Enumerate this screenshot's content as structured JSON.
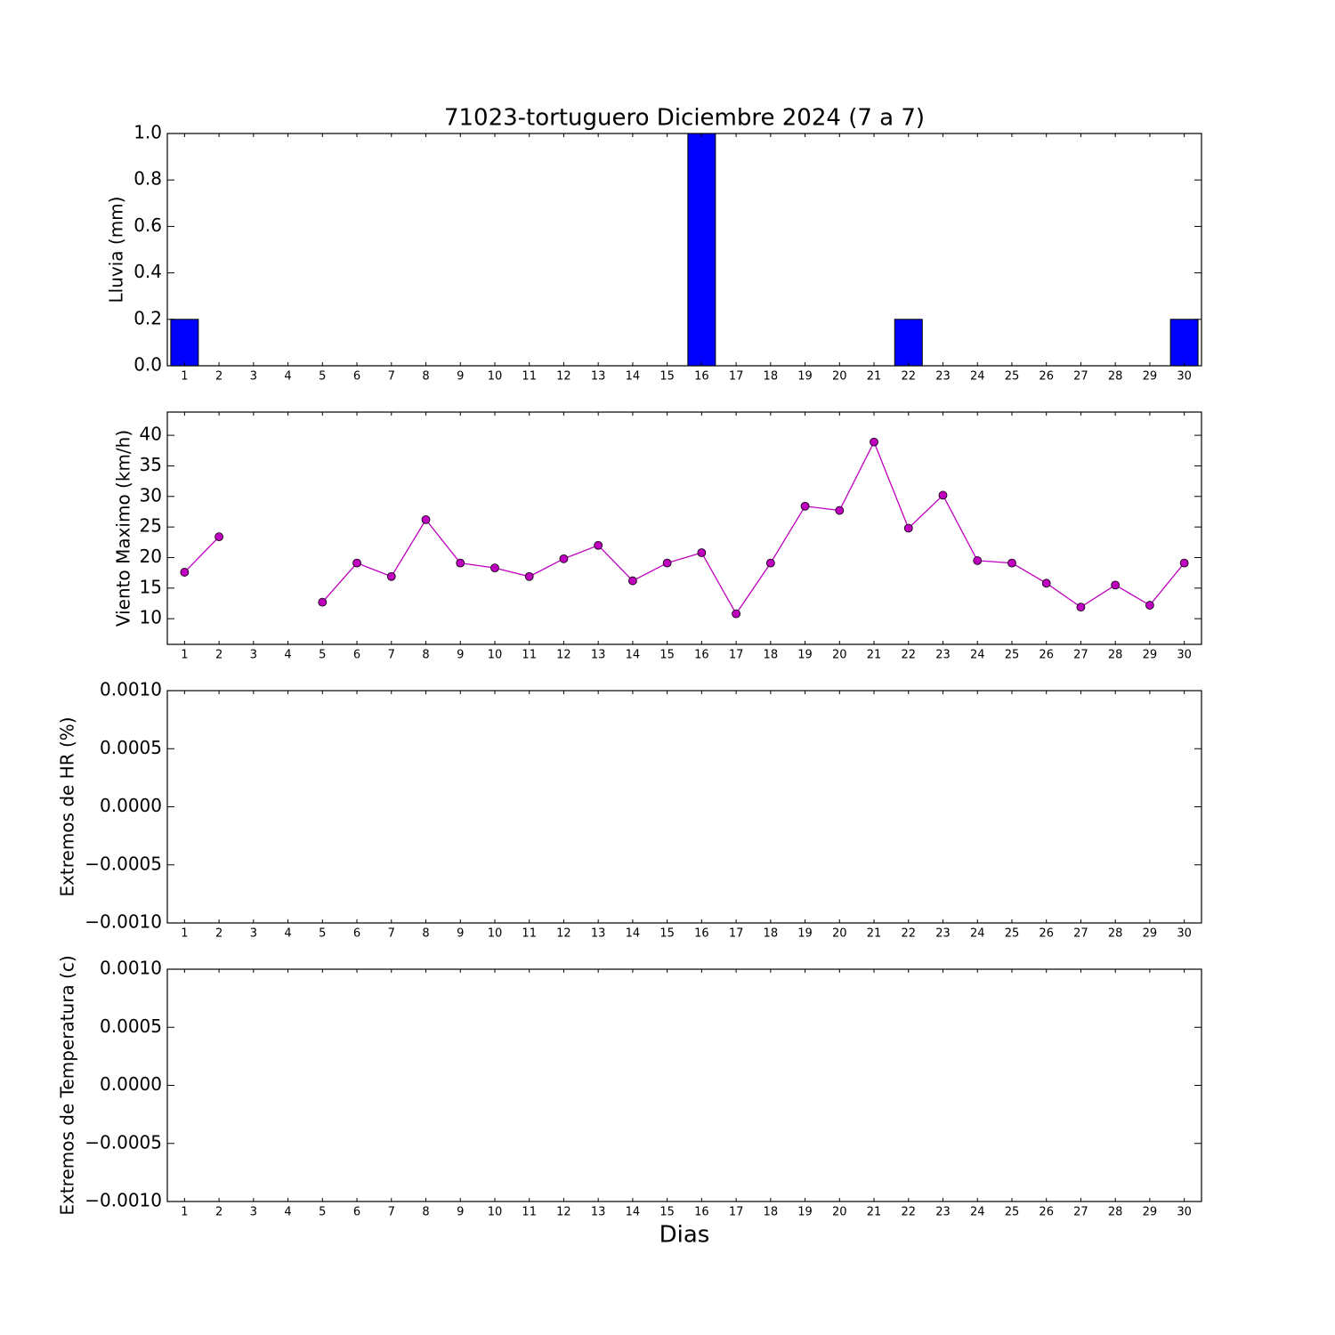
{
  "chart_data": [
    {
      "type": "bar",
      "title": "71023-tortuguero Diciembre 2024  (7 a 7)",
      "y_label": "Lluvia (mm)",
      "x": [
        1,
        2,
        3,
        4,
        5,
        6,
        7,
        8,
        9,
        10,
        11,
        12,
        13,
        14,
        15,
        16,
        17,
        18,
        19,
        20,
        21,
        22,
        23,
        24,
        25,
        26,
        27,
        28,
        29,
        30
      ],
      "values": [
        0.2,
        0,
        0,
        0,
        0,
        0,
        0,
        0,
        0,
        0,
        0,
        0,
        0,
        0,
        0,
        1.0,
        0,
        0,
        0,
        0,
        0,
        0.2,
        0,
        0,
        0,
        0,
        0,
        0,
        0,
        0.2
      ],
      "color": "#0000ff",
      "xlim": [
        0.5,
        30.5
      ],
      "xticks": [
        1,
        2,
        3,
        4,
        5,
        6,
        7,
        8,
        9,
        10,
        11,
        12,
        13,
        14,
        15,
        16,
        17,
        18,
        19,
        20,
        21,
        22,
        23,
        24,
        25,
        26,
        27,
        28,
        29,
        30
      ],
      "ylim": [
        0,
        1
      ],
      "yticks": [
        {
          "value": 0,
          "label": "0.0"
        },
        0.2,
        0.4,
        0.6,
        0.8,
        {
          "value": 1,
          "label": "1.0"
        }
      ]
    },
    {
      "type": "line",
      "y_label": "Viento Maximo (km/h)",
      "x": [
        1,
        2,
        3,
        4,
        5,
        6,
        7,
        8,
        9,
        10,
        11,
        12,
        13,
        14,
        15,
        16,
        17,
        18,
        19,
        20,
        21,
        22,
        23,
        24,
        25,
        26,
        27,
        28,
        29,
        30
      ],
      "series": [
        {
          "color": "#bf00bf",
          "values": [
            17.6,
            23.4,
            null,
            null,
            12.7,
            19.1,
            16.9,
            26.2,
            19.1,
            18.3,
            16.9,
            19.8,
            22.0,
            16.2,
            19.1,
            20.8,
            10.8,
            19.1,
            28.4,
            27.7,
            38.9,
            24.8,
            30.2,
            19.5,
            19.1,
            15.8,
            11.9,
            15.5,
            12.2,
            19.1
          ]
        }
      ],
      "xlim": [
        0.5,
        30.5
      ],
      "xticks": [
        1,
        2,
        3,
        4,
        5,
        6,
        7,
        8,
        9,
        10,
        11,
        12,
        13,
        14,
        15,
        16,
        17,
        18,
        19,
        20,
        21,
        22,
        23,
        24,
        25,
        26,
        27,
        28,
        29,
        30
      ],
      "ylim": [
        5.8,
        43.8
      ],
      "yticks": [
        10,
        15,
        20,
        25,
        30,
        35,
        40
      ]
    },
    {
      "type": "line",
      "y_label": "Extremos de HR (%)",
      "xlim": [
        0.5,
        30.5
      ],
      "xticks": [
        1,
        2,
        3,
        4,
        5,
        6,
        7,
        8,
        9,
        10,
        11,
        12,
        13,
        14,
        15,
        16,
        17,
        18,
        19,
        20,
        21,
        22,
        23,
        24,
        25,
        26,
        27,
        28,
        29,
        30
      ],
      "ylim": [
        -0.001,
        0.001
      ],
      "yticks": [
        {
          "value": -0.001,
          "label": "−0.0010"
        },
        {
          "value": -0.0005,
          "label": "−0.0005"
        },
        {
          "value": 0,
          "label": "0.0000"
        },
        {
          "value": 0.0005,
          "label": "0.0005"
        },
        {
          "value": 0.001,
          "label": "0.0010"
        }
      ]
    },
    {
      "type": "line",
      "y_label": "Extremos de Temperatura (c)",
      "x_label": "Dias",
      "xlim": [
        0.5,
        30.5
      ],
      "xticks": [
        1,
        2,
        3,
        4,
        5,
        6,
        7,
        8,
        9,
        10,
        11,
        12,
        13,
        14,
        15,
        16,
        17,
        18,
        19,
        20,
        21,
        22,
        23,
        24,
        25,
        26,
        27,
        28,
        29,
        30
      ],
      "ylim": [
        -0.001,
        0.001
      ],
      "yticks": [
        {
          "value": -0.001,
          "label": "−0.0010"
        },
        {
          "value": -0.0005,
          "label": "−0.0005"
        },
        {
          "value": 0,
          "label": "0.0000"
        },
        {
          "value": 0.0005,
          "label": "0.0005"
        },
        {
          "value": 0.001,
          "label": "0.0010"
        }
      ]
    }
  ]
}
